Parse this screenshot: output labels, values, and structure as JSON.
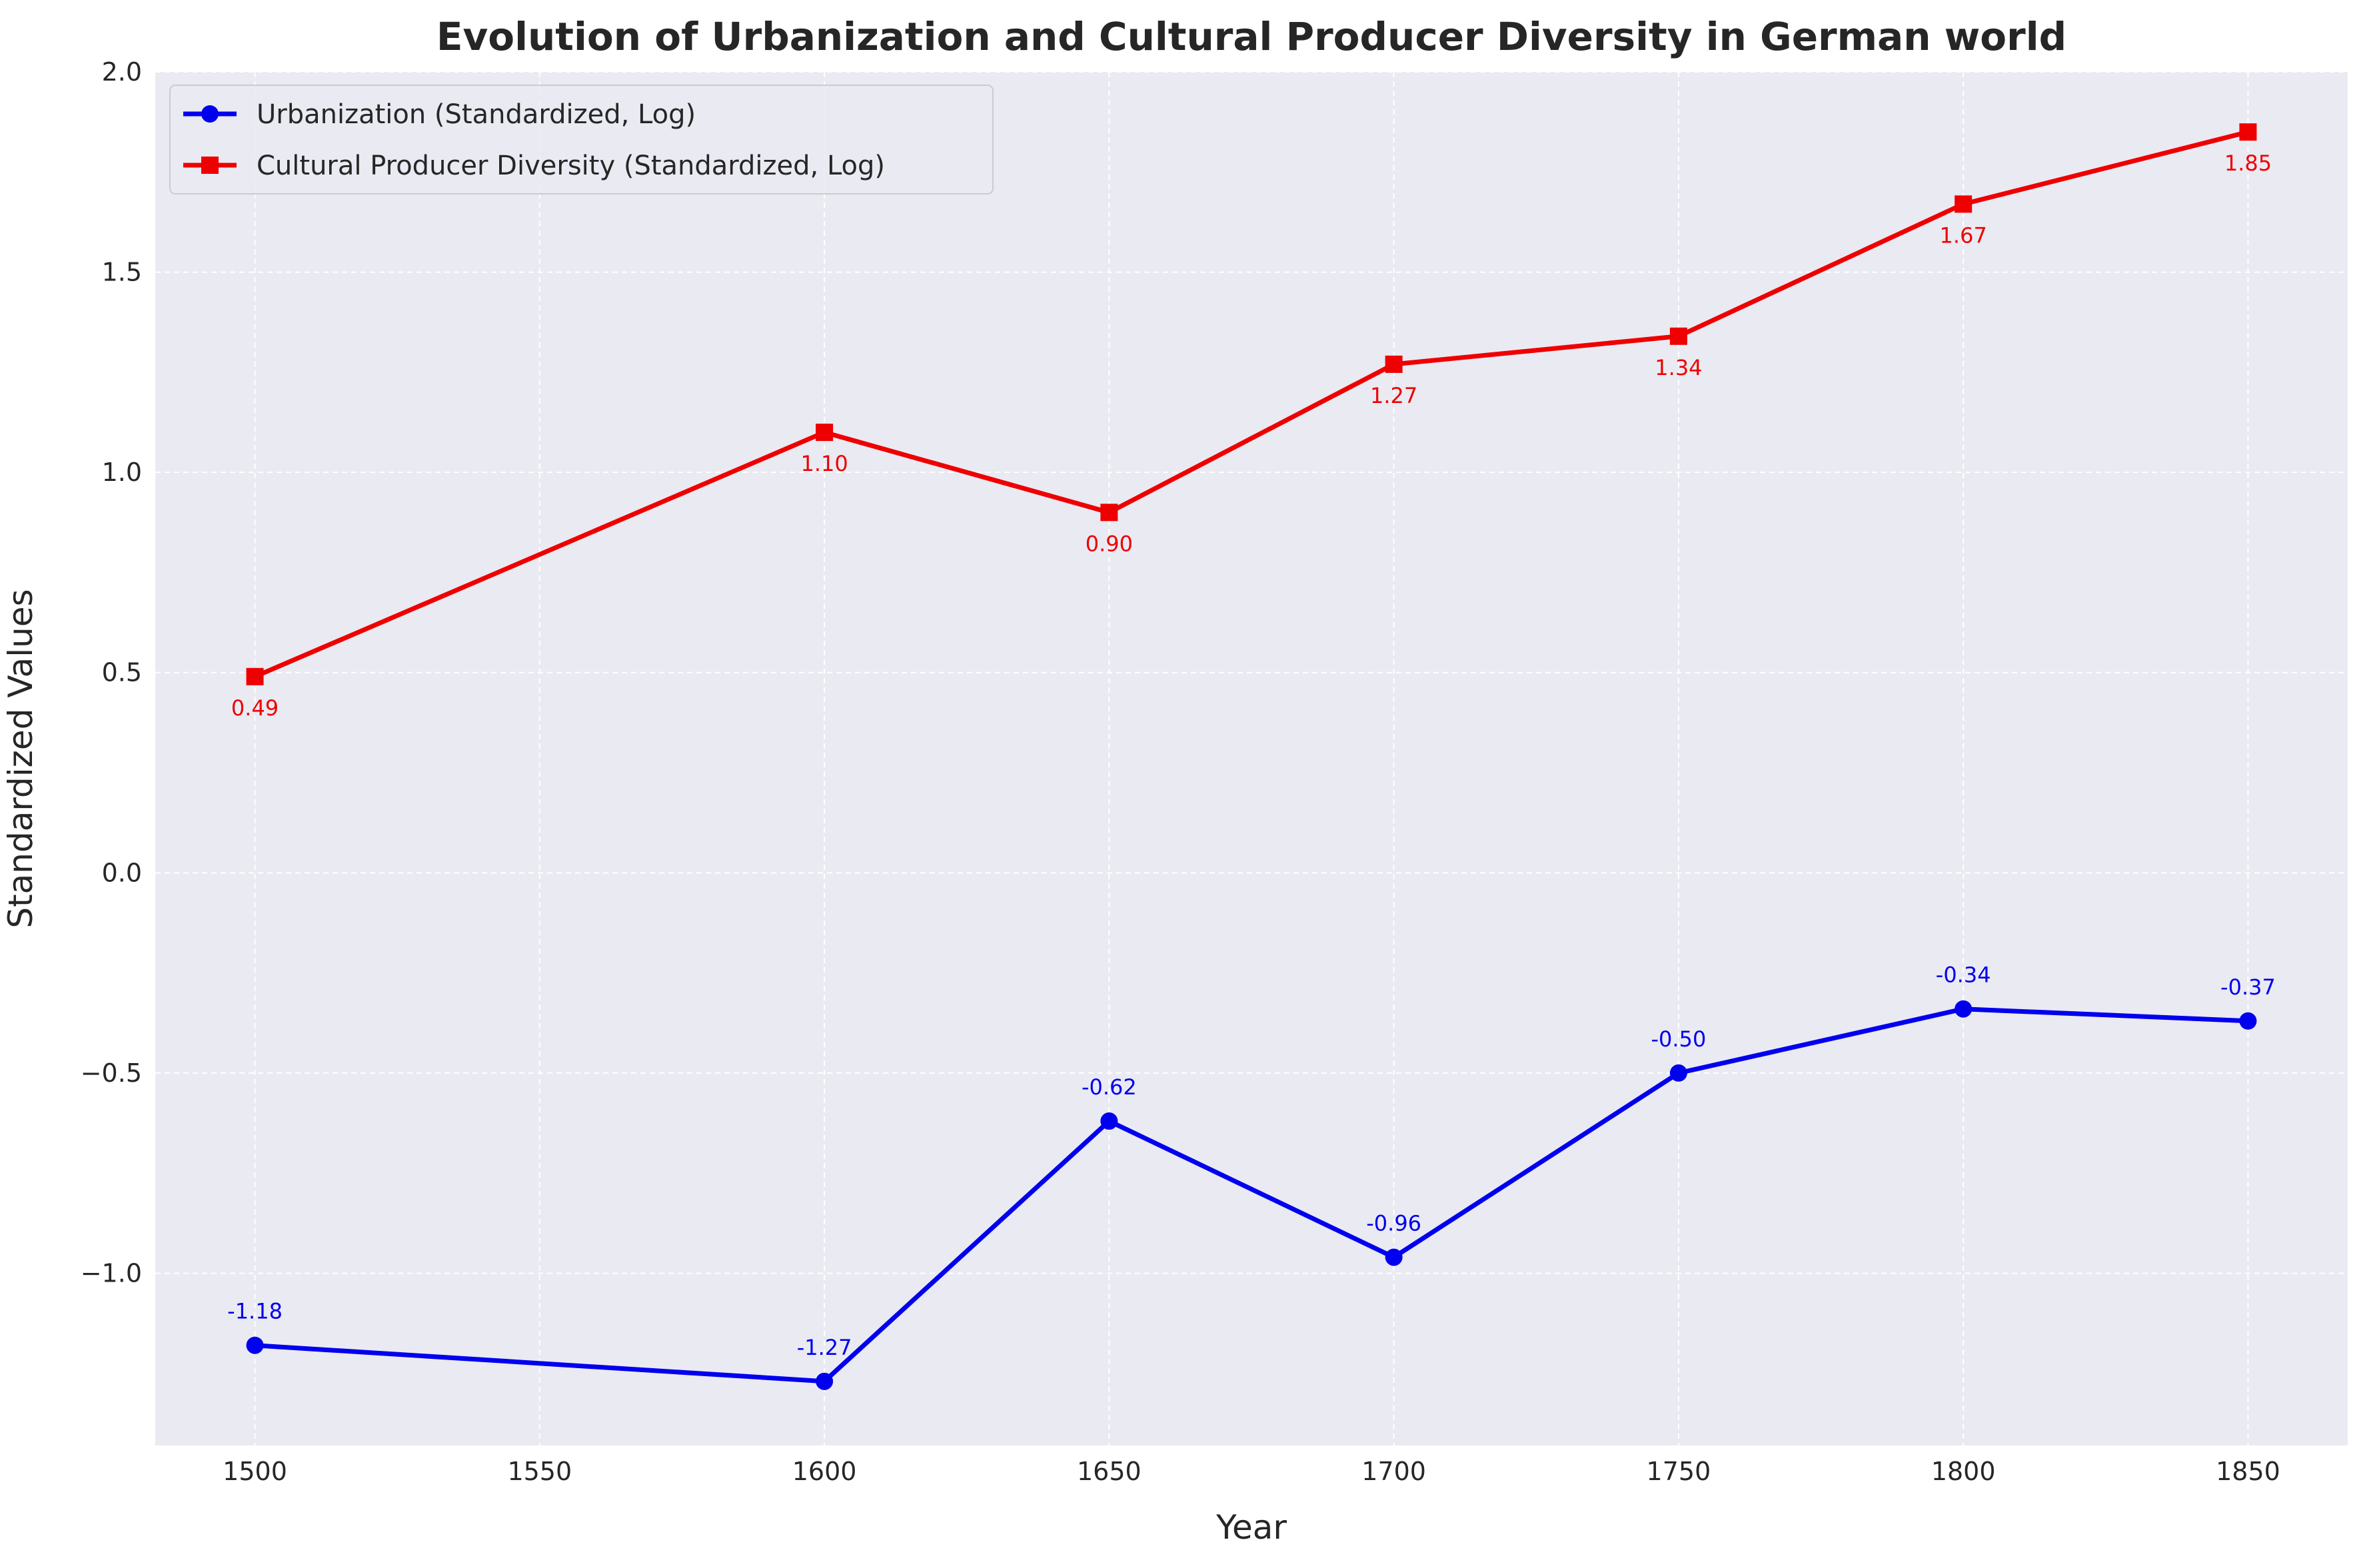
{
  "chart_data": {
    "type": "line",
    "title": "Evolution of Urbanization and Cultural Producer Diversity in German world",
    "xlabel": "Year",
    "ylabel": "Standardized Values",
    "x": [
      1500,
      1600,
      1650,
      1700,
      1750,
      1800,
      1850
    ],
    "xlim": [
      1482.5,
      1867.5
    ],
    "ylim": [
      -1.43,
      2.0
    ],
    "x_ticks": [
      1500,
      1550,
      1600,
      1650,
      1700,
      1750,
      1800,
      1850
    ],
    "x_tick_labels": [
      "1500",
      "1550",
      "1600",
      "1650",
      "1700",
      "1750",
      "1800",
      "1850"
    ],
    "y_ticks": [
      -1.0,
      -0.5,
      0.0,
      0.5,
      1.0,
      1.5,
      2.0
    ],
    "y_tick_labels": [
      "−1.0",
      "−0.5",
      "0.0",
      "0.5",
      "1.0",
      "1.5",
      "2.0"
    ],
    "grid": true,
    "legend_position": "top-left",
    "series": [
      {
        "name": "Urbanization (Standardized, Log)",
        "color": "#0000ee",
        "marker": "circle",
        "label_position": "above",
        "values": [
          -1.18,
          -1.27,
          -0.62,
          -0.96,
          -0.5,
          -0.34,
          -0.37
        ],
        "labels": [
          "-1.18",
          "-1.27",
          "-0.62",
          "-0.96",
          "-0.50",
          "-0.34",
          "-0.37"
        ]
      },
      {
        "name": "Cultural Producer Diversity (Standardized, Log)",
        "color": "#ee0000",
        "marker": "square",
        "label_position": "below",
        "values": [
          0.49,
          1.1,
          0.9,
          1.27,
          1.34,
          1.67,
          1.85
        ],
        "labels": [
          "0.49",
          "1.10",
          "0.90",
          "1.27",
          "1.34",
          "1.67",
          "1.85"
        ]
      }
    ]
  }
}
